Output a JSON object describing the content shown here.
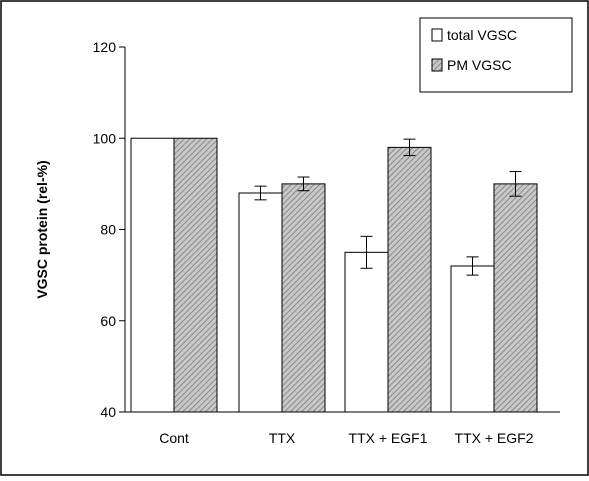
{
  "chart_data": {
    "type": "bar",
    "categories": [
      "Cont",
      "TTX",
      "TTX + EGF1",
      "TTX + EGF2"
    ],
    "series": [
      {
        "name": "total VGSC",
        "values": [
          100,
          88,
          75,
          72
        ],
        "errors": [
          0,
          1.5,
          3.5,
          2
        ],
        "fill": "#ffffff",
        "pattern": "none"
      },
      {
        "name": "PM VGSC",
        "values": [
          100,
          90,
          98,
          90
        ],
        "errors": [
          0,
          1.5,
          1.8,
          2.7
        ],
        "fill": "#c8c8c8",
        "pattern": "diagonal-hatch"
      }
    ],
    "title": "",
    "xlabel": "",
    "ylabel": "VGSC protein (rel-%)",
    "ylim": [
      40,
      120
    ],
    "yticks": [
      40,
      60,
      80,
      100,
      120
    ],
    "ytick_labels": [
      "40",
      "60",
      "80",
      "100",
      "120"
    ],
    "grid": false,
    "legend": {
      "position": "top-right",
      "entries": [
        "total VGSC",
        "PM VGSC"
      ]
    }
  }
}
